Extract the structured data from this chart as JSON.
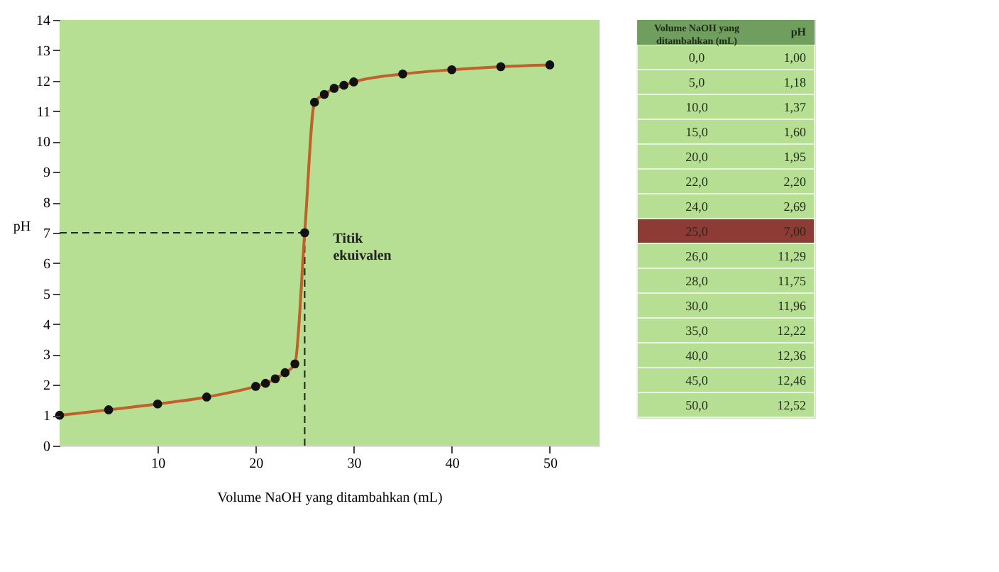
{
  "chart_data": [
    {
      "type": "line",
      "xlabel": "Volume NaOH yang ditambahkan (mL)",
      "ylabel": "pH",
      "x": [
        0,
        5,
        10,
        15,
        20,
        21,
        22,
        23,
        24,
        25,
        26,
        27,
        28,
        29,
        30,
        35,
        40,
        45,
        50
      ],
      "series": [
        {
          "type": "line",
          "color": "#c0602a",
          "marker": "none",
          "values": [
            1.0,
            1.18,
            1.37,
            1.6,
            1.95,
            2.05,
            2.2,
            2.4,
            2.69,
            7.0,
            11.29,
            11.55,
            11.75,
            11.85,
            11.96,
            12.22,
            12.36,
            12.46,
            12.52
          ]
        },
        {
          "type": "scatter",
          "color": "#111111",
          "marker": "circle",
          "values": [
            1.0,
            1.18,
            1.37,
            1.6,
            1.95,
            2.05,
            2.2,
            2.4,
            2.69,
            7.0,
            11.29,
            11.55,
            11.75,
            11.85,
            11.96,
            12.22,
            12.36,
            12.46,
            12.52
          ]
        }
      ],
      "xlim": [
        0,
        55
      ],
      "ylim": [
        0,
        14
      ],
      "xticks": [
        10,
        20,
        30,
        40,
        50
      ],
      "yticks": [
        0,
        1,
        2,
        3,
        4,
        5,
        6,
        7,
        8,
        9,
        10,
        11,
        12,
        13,
        14
      ],
      "ref_lines": [
        {
          "axis": "x",
          "value": 25,
          "line_style": "dashed"
        },
        {
          "axis": "y",
          "value": 7,
          "line_style": "dashed"
        }
      ],
      "annotations": [
        {
          "text": "Titik ekuivalen",
          "x": 25,
          "y": 7
        }
      ]
    },
    {
      "type": "other",
      "xlabel": "Volume NaOH yang ditambahkan (mL)",
      "ylabel": "pH",
      "categories": [
        "0,0",
        "5,0",
        "10,0",
        "15,0",
        "20,0",
        "22,0",
        "24,0",
        "25,0",
        "26,0",
        "28,0",
        "30,0",
        "35,0",
        "40,0",
        "45,0",
        "50,0"
      ],
      "colors": [
        "#b7df93",
        "#b7df93",
        "#b7df93",
        "#b7df93",
        "#b7df93",
        "#b7df93",
        "#b7df93",
        "#8e3a36",
        "#b7df93",
        "#b7df93",
        "#b7df93",
        "#b7df93",
        "#b7df93",
        "#b7df93",
        "#b7df93"
      ],
      "value_labels": [
        "1,00",
        "1,18",
        "1,37",
        "1,60",
        "1,95",
        "2,20",
        "2,69",
        "7,00",
        "11,29",
        "11,75",
        "11,96",
        "12,22",
        "12,36",
        "12,46",
        "12,52"
      ]
    }
  ]
}
